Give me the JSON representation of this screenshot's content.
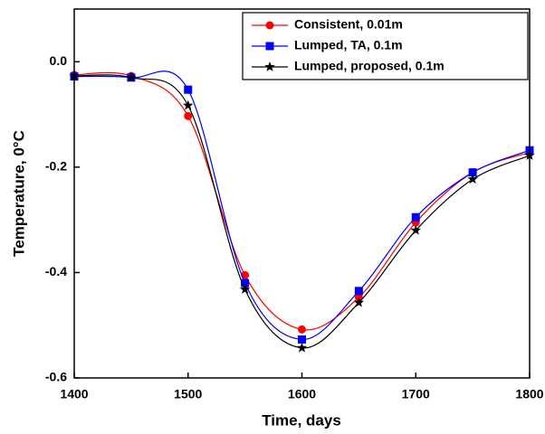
{
  "chart_data": {
    "type": "line",
    "x_label": "Time, days",
    "y_label": "Temperature, 0°C",
    "x": [
      1400,
      1450,
      1500,
      1550,
      1600,
      1650,
      1700,
      1750,
      1800
    ],
    "series": [
      {
        "name": "Consistent, 0.01m",
        "color": "#ff0000",
        "marker": "circle",
        "values": [
          -0.025,
          -0.027,
          -0.103,
          -0.405,
          -0.508,
          -0.447,
          -0.305,
          -0.21,
          -0.172
        ]
      },
      {
        "name": "Lumped, TA, 0.1m",
        "color": "#0000ff",
        "marker": "square",
        "values": [
          -0.028,
          -0.03,
          -0.053,
          -0.42,
          -0.527,
          -0.435,
          -0.295,
          -0.21,
          -0.168
        ]
      },
      {
        "name": "Lumped, proposed, 0.1m",
        "color": "#000000",
        "marker": "star",
        "values": [
          -0.027,
          -0.03,
          -0.083,
          -0.432,
          -0.543,
          -0.457,
          -0.32,
          -0.223,
          -0.178
        ]
      }
    ],
    "xlim": [
      1400,
      1800
    ],
    "xticks": [
      1400,
      1500,
      1600,
      1700,
      1800
    ],
    "ylim": [
      -0.6,
      0.1
    ],
    "yticks": [
      -0.6,
      -0.4,
      -0.2,
      {
        "value": 0,
        "label": "0.0"
      }
    ],
    "legend": "upper right",
    "smooth": true
  }
}
